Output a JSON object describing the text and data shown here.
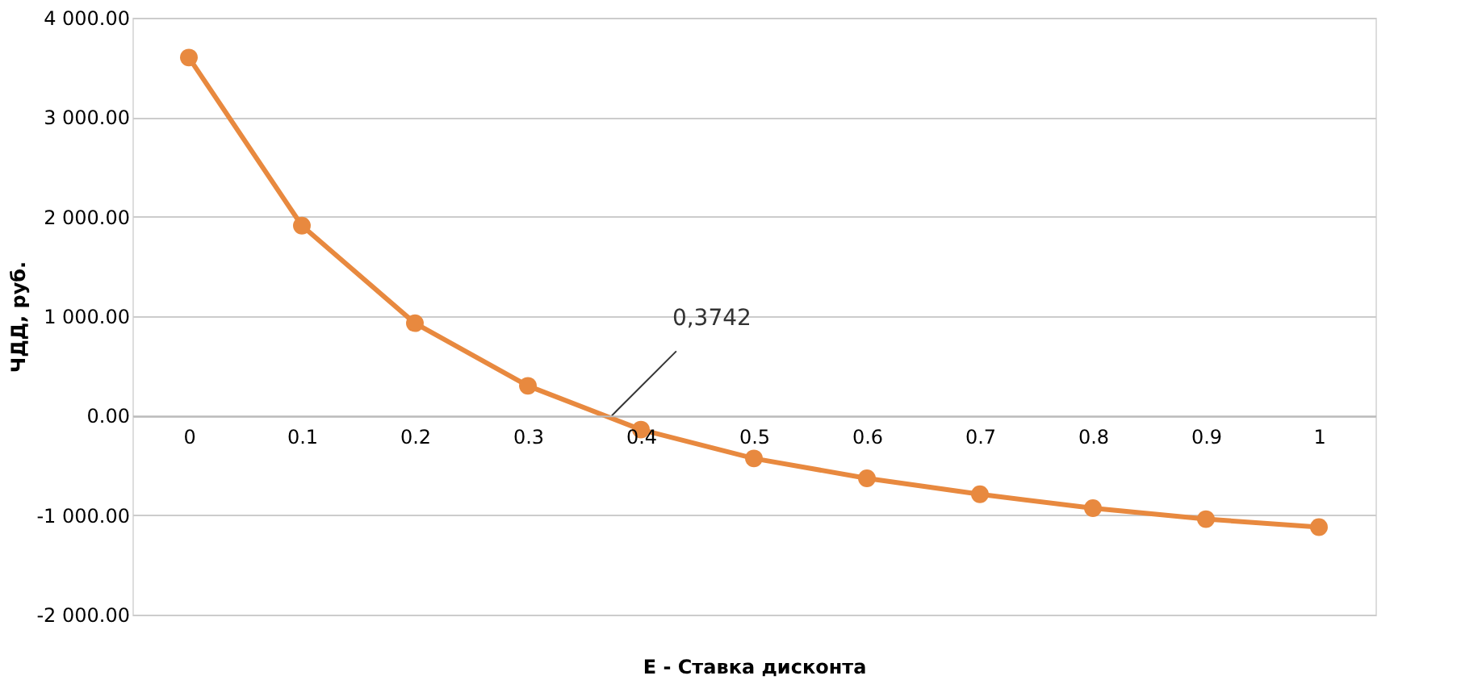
{
  "chart_data": {
    "type": "line",
    "xlabel": "E - Ставка дисконта",
    "ylabel": "ЧДД, руб.",
    "x": [
      0,
      0.1,
      0.2,
      0.3,
      0.4,
      0.5,
      0.6,
      0.7,
      0.8,
      0.9,
      1
    ],
    "series": [
      {
        "color": "#e8893f",
        "values": [
          3600,
          1910,
          930,
          300,
          -140,
          -430,
          -630,
          -790,
          -930,
          -1040,
          -1120
        ]
      }
    ],
    "xlim": [
      -0.05,
      1.05
    ],
    "xticks": [
      0,
      0.1,
      0.2,
      0.3,
      0.4,
      0.5,
      0.6,
      0.7,
      0.8,
      0.9,
      1
    ],
    "ylim": [
      -2000,
      4000
    ],
    "yticks": [
      {
        "value": -2000,
        "label": "-2 000.00"
      },
      {
        "value": -1000,
        "label": "-1 000.00"
      },
      {
        "value": 0,
        "label": "0.00"
      },
      {
        "value": 1000,
        "label": "1 000.00"
      },
      {
        "value": 2000,
        "label": "2 000.00"
      },
      {
        "value": 3000,
        "label": "3 000.00"
      },
      {
        "value": 4000,
        "label": "4 000.00"
      }
    ],
    "grid": "y",
    "marker": "circle",
    "line_style": "solid",
    "annotations": [
      {
        "text": "0,3742",
        "x": 0.3742,
        "y": 0
      }
    ]
  }
}
